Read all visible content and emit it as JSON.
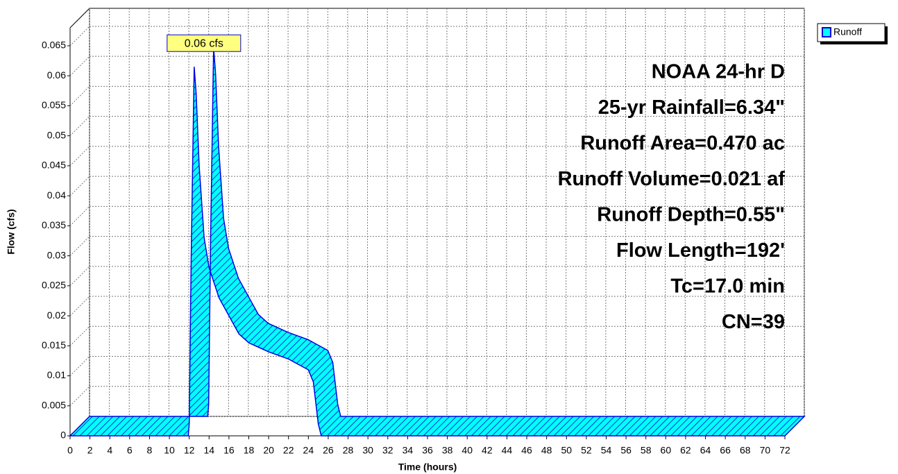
{
  "chart_data": {
    "type": "ribbon",
    "xlabel": "Time (hours)",
    "ylabel": "Flow (cfs)",
    "annotations": [
      "NOAA 24-hr D",
      "25-yr Rainfall=6.34\"",
      "Runoff Area=0.470 ac",
      "Runoff Volume=0.021 af",
      "Runoff Depth=0.55\"",
      "Flow Length=192'",
      "Tc=17.0 min",
      "CN=39"
    ],
    "peak_label": "0.06 cfs",
    "xlim": [
      0,
      72
    ],
    "ylim": [
      0,
      0.068
    ],
    "xticks": [
      0,
      2,
      4,
      6,
      8,
      10,
      12,
      14,
      16,
      18,
      20,
      22,
      24,
      26,
      28,
      30,
      32,
      34,
      36,
      38,
      40,
      42,
      44,
      46,
      48,
      50,
      52,
      54,
      56,
      58,
      60,
      62,
      64,
      66,
      68,
      70,
      72
    ],
    "yticks": [
      0,
      0.005,
      0.01,
      0.015,
      0.02,
      0.025,
      0.03,
      0.035,
      0.04,
      0.045,
      0.05,
      0.055,
      0.06,
      0.065
    ],
    "grid": true,
    "legend": "top-right",
    "series": [
      {
        "name": "Runoff",
        "color": "#00ffff",
        "x": [
          0,
          11.9,
          12.0,
          12.2,
          12.5,
          12.7,
          13.0,
          13.5,
          14,
          15,
          16,
          17,
          18,
          20,
          22,
          24,
          24.5,
          25,
          25.3,
          72
        ],
        "values": [
          0,
          0,
          0.002,
          0.03,
          0.0615,
          0.057,
          0.045,
          0.033,
          0.028,
          0.023,
          0.02,
          0.017,
          0.0155,
          0.014,
          0.0128,
          0.011,
          0.009,
          0.002,
          0,
          0
        ]
      }
    ]
  }
}
